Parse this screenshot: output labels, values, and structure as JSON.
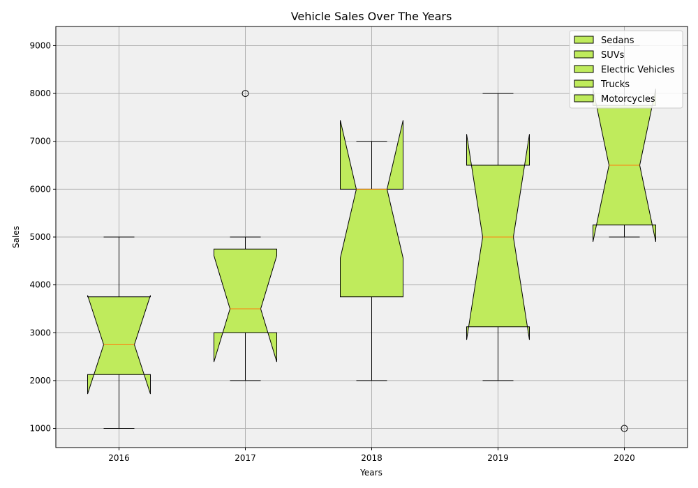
{
  "chart_data": {
    "type": "boxplot",
    "title": "Vehicle Sales Over The Years",
    "xlabel": "Years",
    "ylabel": "Sales",
    "categories": [
      "2016",
      "2017",
      "2018",
      "2019",
      "2020"
    ],
    "ylim": [
      600,
      9400
    ],
    "yticks": [
      1000,
      2000,
      3000,
      4000,
      5000,
      6000,
      7000,
      8000,
      9000
    ],
    "notched": true,
    "grid": true,
    "legend_position": "top-right",
    "legend": [
      "Sedans",
      "SUVs",
      "Electric Vehicles",
      "Trucks",
      "Motorcycles"
    ],
    "boxes": [
      {
        "category": "2016",
        "whisker_low": 1000,
        "q1": 2125,
        "median": 2750,
        "q3": 3750,
        "whisker_high": 5000,
        "notch_low": 1720,
        "notch_high": 3780,
        "outliers": []
      },
      {
        "category": "2017",
        "whisker_low": 2000,
        "q1": 3000,
        "median": 3500,
        "q3": 4750,
        "whisker_high": 5000,
        "notch_low": 2390,
        "notch_high": 4610,
        "outliers": [
          8000
        ]
      },
      {
        "category": "2018",
        "whisker_low": 2000,
        "q1": 3750,
        "median": 6000,
        "q3": 6000,
        "whisker_high": 7000,
        "notch_low": 4560,
        "notch_high": 7440,
        "outliers": []
      },
      {
        "category": "2019",
        "whisker_low": 2000,
        "q1": 3125,
        "median": 5000,
        "q3": 6500,
        "whisker_high": 8000,
        "notch_low": 2850,
        "notch_high": 7150,
        "outliers": []
      },
      {
        "category": "2020",
        "whisker_low": 5000,
        "q1": 5250,
        "median": 6500,
        "q3": 7750,
        "whisker_high": 9000,
        "notch_low": 4900,
        "notch_high": 8100,
        "outliers": [
          1000
        ]
      }
    ],
    "colors": {
      "box_fill": "#bfeb5c",
      "box_edge": "#000000",
      "median": "#ff7f0e",
      "plot_bg": "#f0f0f0",
      "grid": "#b0b0b0"
    }
  }
}
